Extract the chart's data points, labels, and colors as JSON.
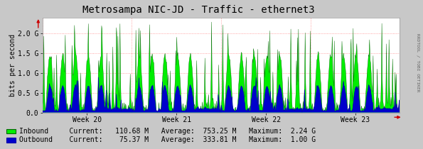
{
  "title": "Metrosampa NIC-JD - Traffic - ethernet3",
  "ylabel": "bits per second",
  "x_labels": [
    "Week 20",
    "Week 21",
    "Week 22",
    "Week 23"
  ],
  "ylim": [
    0,
    2400000000.0
  ],
  "yticks": [
    0.0,
    500000000.0,
    1000000000.0,
    1500000000.0,
    2000000000.0
  ],
  "ytick_labels": [
    "0.0",
    "0.5 G",
    "1.0 G",
    "1.5 G",
    "2.0 G"
  ],
  "bg_color": "#c8c8c8",
  "plot_bg_color": "#ffffff",
  "inbound_fill_color": "#00ee00",
  "inbound_line_color": "#006600",
  "outbound_fill_color": "#0000cc",
  "outbound_line_color": "#0000aa",
  "grid_color": "#ff8888",
  "arrow_color": "#cc0000",
  "rrdtool_text": "RRDTOOL / TOBI OETIKER",
  "title_fontsize": 10,
  "axis_fontsize": 7,
  "legend_fontsize": 7,
  "num_points": 700,
  "num_weeks": 4,
  "seed": 12345
}
